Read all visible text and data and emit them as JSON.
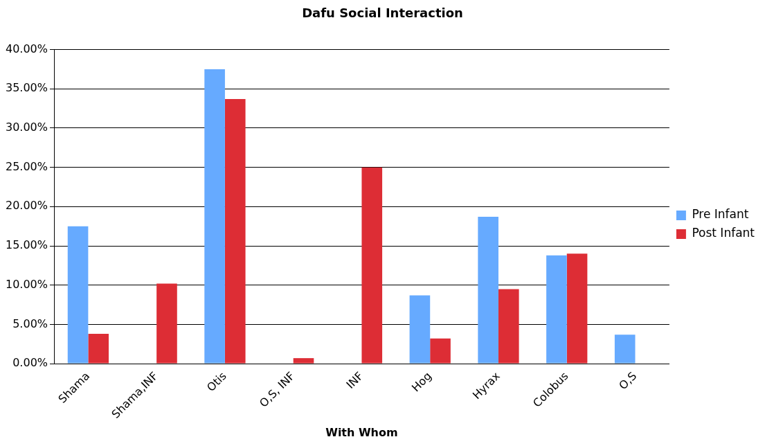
{
  "chart_data": {
    "type": "bar",
    "title": "Dafu Social Interaction",
    "xlabel": "With Whom",
    "categories": [
      "Shama",
      "Shama,INF",
      "Otis",
      "O,S, INF",
      "INF",
      "Hog",
      "Hyrax",
      "Colobus",
      "O,S"
    ],
    "series": [
      {
        "name": "Pre Infant",
        "color": "#66aaff",
        "values": [
          17.5,
          null,
          37.5,
          null,
          null,
          8.7,
          18.7,
          13.8,
          3.7
        ]
      },
      {
        "name": "Post Infant",
        "color": "#dd2d35",
        "values": [
          3.8,
          10.2,
          33.7,
          0.7,
          25.0,
          3.2,
          9.5,
          14.0,
          null
        ]
      }
    ],
    "ylim": [
      0,
      40
    ],
    "yticks": [
      {
        "value": 0,
        "label": "0.00%"
      },
      {
        "value": 5,
        "label": "5.00%"
      },
      {
        "value": 10,
        "label": "10.00%"
      },
      {
        "value": 15,
        "label": "15.00%"
      },
      {
        "value": 20,
        "label": "20.00%"
      },
      {
        "value": 25,
        "label": "25.00%"
      },
      {
        "value": 30,
        "label": "30.00%"
      },
      {
        "value": 35,
        "label": "35.00%"
      },
      {
        "value": 40,
        "label": "40.00%"
      }
    ],
    "grid": "y",
    "legend": "right"
  }
}
